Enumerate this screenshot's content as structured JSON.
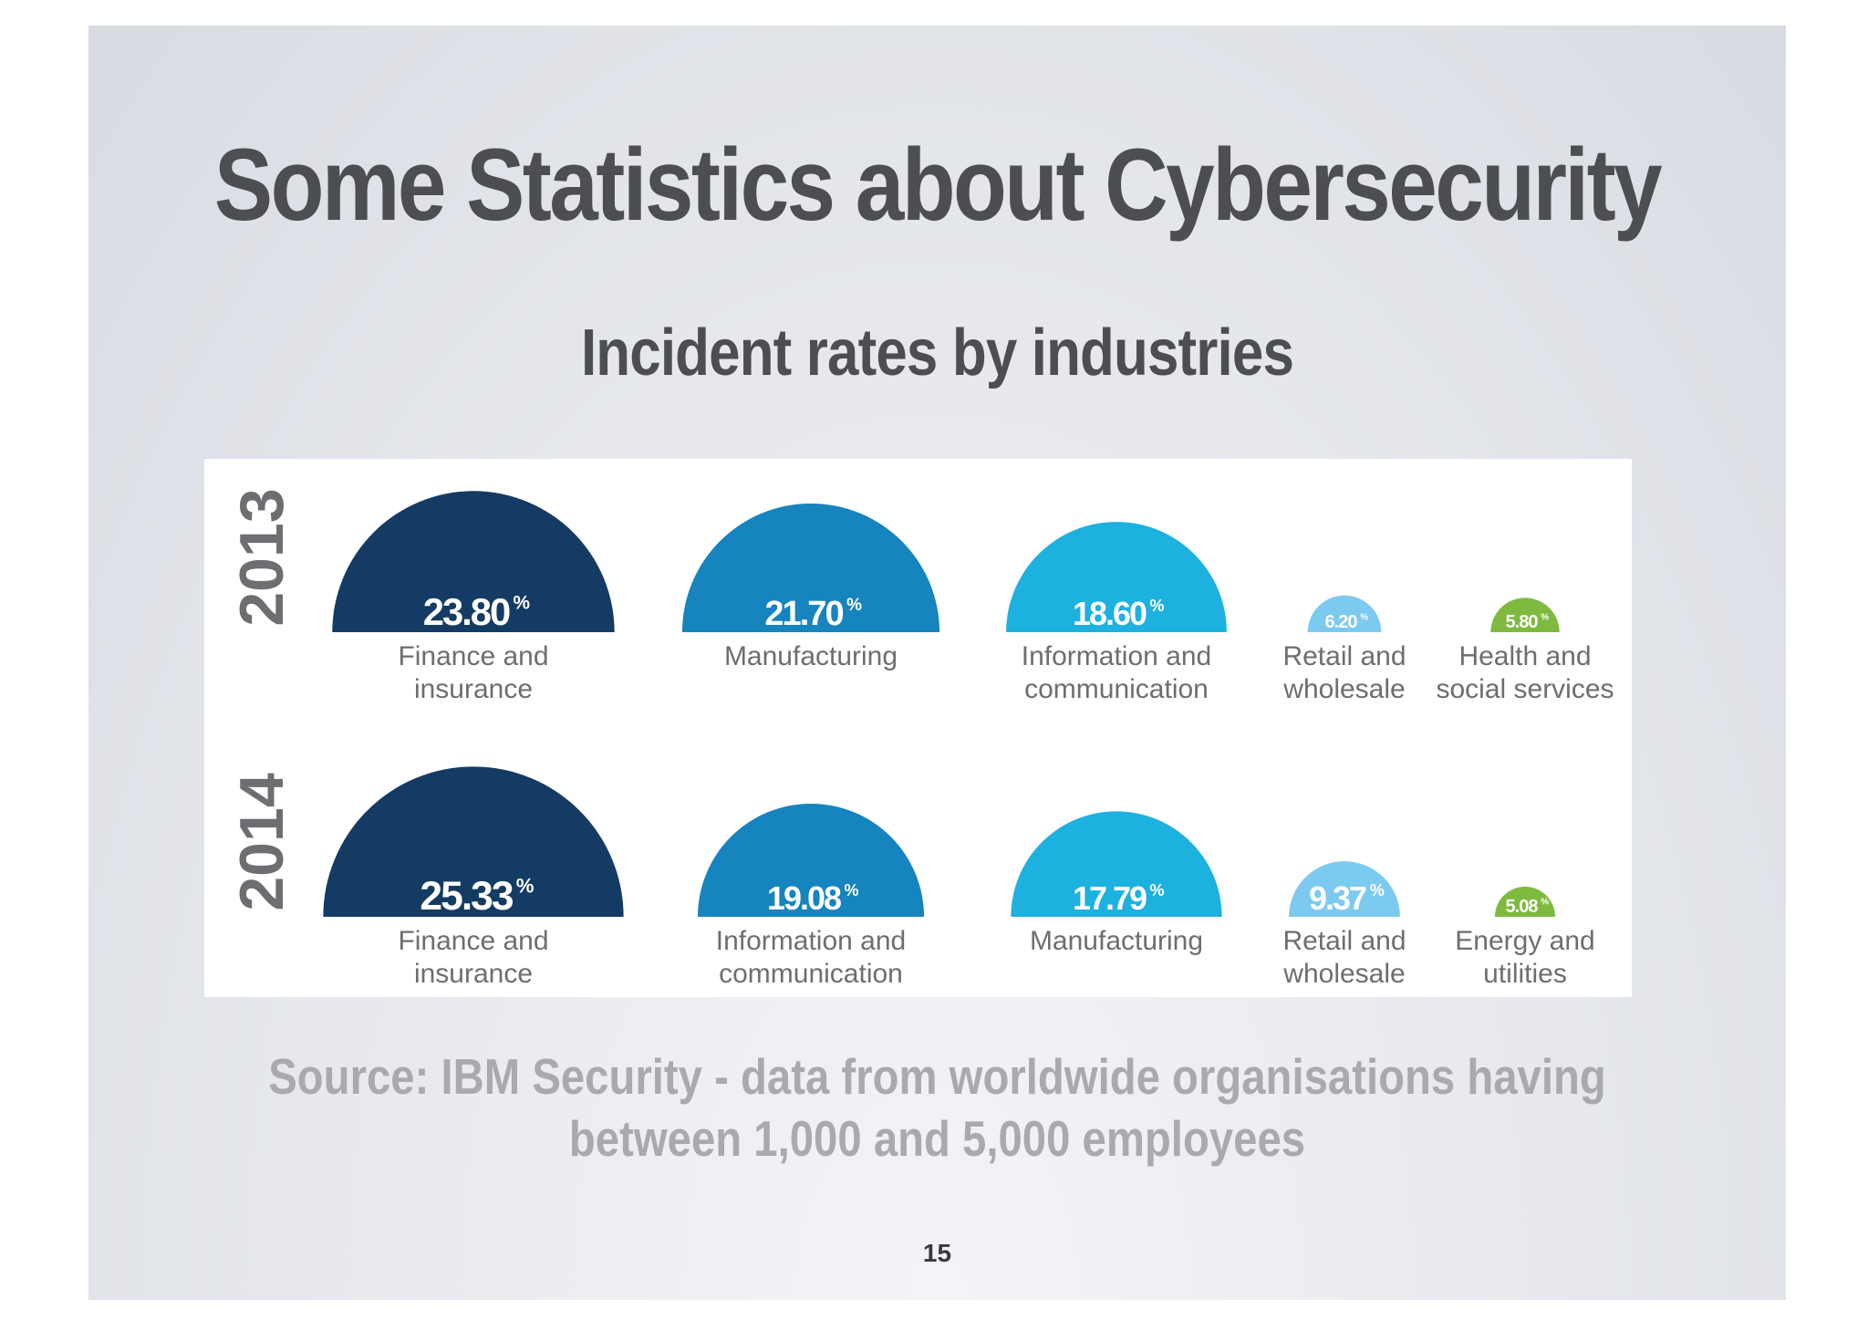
{
  "slide": {
    "title": "Some Statistics about Cybersecurity",
    "subtitle": "Incident rates by industries",
    "source_line1": "Source: IBM Security - data from worldwide organisations having",
    "source_line2": "between 1,000 and 5,000 employees",
    "page_number": "15"
  },
  "chart_data": {
    "type": "semicircle-bar",
    "unit": "%",
    "rows": [
      {
        "year": "2013",
        "items": [
          {
            "label": [
              "Finance and",
              "insurance"
            ],
            "value": 23.8,
            "value_text": "23.80",
            "color": "#143b64"
          },
          {
            "label": [
              "Manufacturing"
            ],
            "value": 21.7,
            "value_text": "21.70",
            "color": "#1684be"
          },
          {
            "label": [
              "Information and",
              "communication"
            ],
            "value": 18.6,
            "value_text": "18.60",
            "color": "#1db1df"
          },
          {
            "label": [
              "Retail and",
              "wholesale"
            ],
            "value": 6.2,
            "value_text": "6.20",
            "color": "#7ccaf0"
          },
          {
            "label": [
              "Health and",
              "social services"
            ],
            "value": 5.8,
            "value_text": "5.80",
            "color": "#7dba3f"
          }
        ]
      },
      {
        "year": "2014",
        "items": [
          {
            "label": [
              "Finance and",
              "insurance"
            ],
            "value": 25.33,
            "value_text": "25.33",
            "color": "#143b64"
          },
          {
            "label": [
              "Information and",
              "communication"
            ],
            "value": 19.08,
            "value_text": "19.08",
            "color": "#1684be"
          },
          {
            "label": [
              "Manufacturing"
            ],
            "value": 17.79,
            "value_text": "17.79",
            "color": "#1db1df"
          },
          {
            "label": [
              "Retail and",
              "wholesale"
            ],
            "value": 9.37,
            "value_text": "9.37",
            "color": "#7ccaf0"
          },
          {
            "label": [
              "Energy and",
              "utilities"
            ],
            "value": 5.08,
            "value_text": "5.08",
            "color": "#7dba3f"
          }
        ]
      }
    ]
  }
}
